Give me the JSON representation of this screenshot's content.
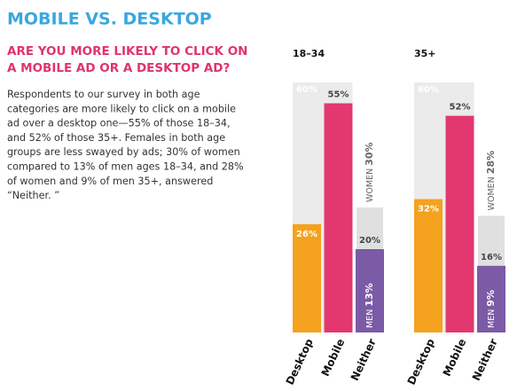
{
  "header": {
    "title": "MOBILE VS. DESKTOP",
    "subtitle": [
      "ARE YOU MORE LIKELY TO CLICK ON",
      "A MOBILE AD OR A DESKTOP AD?"
    ],
    "body": [
      "Respondents to our survey in both age",
      "categories are more likely to click on a mobile",
      "ad over a desktop one—55% of those 18–34,",
      "and 52% of those 35+. Females in both age",
      "groups are less swayed by ads; 30% of women",
      "compared to 13% of men ages 18–34, and 28%",
      "of women and 9% of men 35+, answered",
      "“Neither. ”"
    ]
  },
  "chart_data": [
    {
      "type": "bar",
      "title": "18–34",
      "categories": [
        "Desktop",
        "Mobile",
        "Neither"
      ],
      "values": [
        26,
        55,
        20
      ],
      "value_labels": [
        "26%",
        "55%",
        "20%"
      ],
      "colors": [
        "#f4a21e",
        "#e2386f",
        "#7b5aa6"
      ],
      "ylim": [
        0,
        60
      ],
      "yticks": [
        {
          "value": 60,
          "label": "60%"
        }
      ],
      "series": [
        {
          "name": "WOMEN",
          "color": "#e0e0e0",
          "values": [
            null,
            null,
            30
          ],
          "value_labels": [
            null,
            null,
            "30%"
          ]
        },
        {
          "name": "MEN",
          "color": "#7b5aa6",
          "values": [
            null,
            null,
            13
          ],
          "value_labels": [
            null,
            null,
            "13%"
          ]
        }
      ]
    },
    {
      "type": "bar",
      "title": "35+",
      "categories": [
        "Desktop",
        "Mobile",
        "Neither"
      ],
      "values": [
        32,
        52,
        16
      ],
      "value_labels": [
        "32%",
        "52%",
        "16%"
      ],
      "colors": [
        "#f4a21e",
        "#e2386f",
        "#7b5aa6"
      ],
      "ylim": [
        0,
        60
      ],
      "yticks": [
        {
          "value": 60,
          "label": "60%"
        }
      ],
      "series": [
        {
          "name": "WOMEN",
          "color": "#e0e0e0",
          "values": [
            null,
            null,
            28
          ],
          "value_labels": [
            null,
            null,
            "28%"
          ]
        },
        {
          "name": "MEN",
          "color": "#7b5aa6",
          "values": [
            null,
            null,
            9
          ],
          "value_labels": [
            null,
            null,
            "9%"
          ]
        }
      ]
    }
  ]
}
